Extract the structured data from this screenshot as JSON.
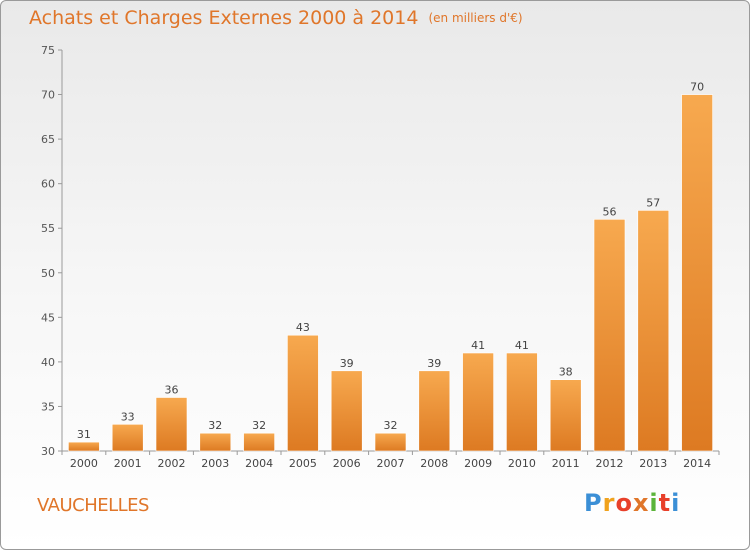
{
  "title": "Achats et Charges Externes 2000 à 2014",
  "subtitle": "(en milliers d'€)",
  "commune": "VAUCHELLES",
  "logo": {
    "letters": [
      "P",
      "r",
      "o",
      "x",
      "i",
      "t",
      "i"
    ],
    "colors": [
      "#3b8fd6",
      "#f0a21d",
      "#e8402a",
      "#e0762a",
      "#5bb43a",
      "#e8402a",
      "#3b8fd6"
    ]
  },
  "colors": {
    "accent": "#e0762a",
    "bar_top": "#f7a94f",
    "bar_bottom": "#dd7a22"
  },
  "chart_data": {
    "type": "bar",
    "title": "Achats et Charges Externes 2000 à 2014",
    "subtitle": "(en milliers d'€)",
    "categories": [
      "2000",
      "2001",
      "2002",
      "2003",
      "2004",
      "2005",
      "2006",
      "2007",
      "2008",
      "2009",
      "2010",
      "2011",
      "2012",
      "2013",
      "2014"
    ],
    "values": [
      31,
      33,
      36,
      32,
      32,
      43,
      39,
      32,
      39,
      41,
      41,
      38,
      56,
      57,
      70
    ],
    "ylim": [
      30,
      75
    ],
    "yticks": [
      30,
      35,
      40,
      45,
      50,
      55,
      60,
      65,
      70,
      75
    ],
    "grid": false,
    "data_labels": true
  }
}
